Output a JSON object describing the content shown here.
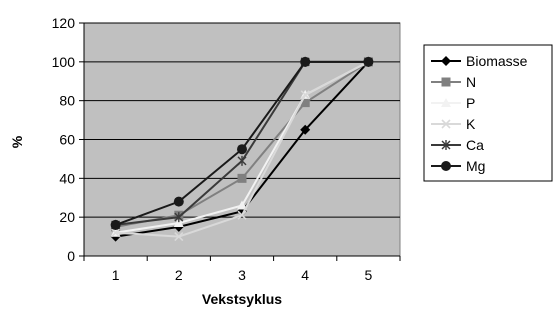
{
  "chart_data": {
    "type": "line",
    "title": "",
    "xlabel": "Vekstsyklus",
    "ylabel": "%",
    "x": [
      1,
      2,
      3,
      4,
      5
    ],
    "x_tick_labels": [
      "1",
      "2",
      "3",
      "4",
      "5"
    ],
    "ylim": [
      0,
      120
    ],
    "y_ticks": [
      0,
      20,
      40,
      60,
      80,
      100,
      120
    ],
    "y_tick_labels": [
      "0",
      "20",
      "40",
      "60",
      "80",
      "100",
      "120"
    ],
    "grid": true,
    "legend_position": "right",
    "plot_background": "#c0c0c0",
    "series": [
      {
        "name": "Biomasse",
        "values": [
          10,
          15,
          23,
          65,
          100
        ],
        "color": "#000000",
        "marker": "diamond"
      },
      {
        "name": "N",
        "values": [
          15,
          21,
          40,
          79,
          100
        ],
        "color": "#808080",
        "marker": "square"
      },
      {
        "name": "P",
        "values": [
          12,
          17,
          26,
          83,
          100
        ],
        "color": "#f2f2f2",
        "marker": "triangle"
      },
      {
        "name": "K",
        "values": [
          12,
          10,
          21,
          83,
          100
        ],
        "color": "#d9d9d9",
        "marker": "x"
      },
      {
        "name": "Ca",
        "values": [
          16,
          20,
          49,
          100,
          100
        ],
        "color": "#3a3a3a",
        "marker": "star"
      },
      {
        "name": "Mg",
        "values": [
          16,
          28,
          55,
          100,
          100
        ],
        "color": "#1a1a1a",
        "marker": "circle"
      }
    ]
  }
}
